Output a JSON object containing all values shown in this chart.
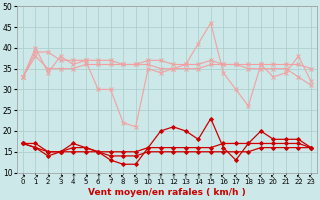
{
  "title": "",
  "xlabel": "Vent moyen/en rafales ( km/h )",
  "x": [
    0,
    1,
    2,
    3,
    4,
    5,
    6,
    7,
    8,
    9,
    10,
    11,
    12,
    13,
    14,
    15,
    16,
    17,
    18,
    19,
    20,
    21,
    22,
    23
  ],
  "series": [
    {
      "name": "rafales_volatile",
      "color": "#f4a0a0",
      "linewidth": 0.8,
      "marker": "x",
      "markersize": 2.5,
      "y": [
        33,
        40,
        34,
        38,
        36,
        37,
        30,
        30,
        22,
        21,
        35,
        34,
        35,
        36,
        41,
        46,
        34,
        30,
        26,
        36,
        33,
        34,
        38,
        32
      ]
    },
    {
      "name": "rafales_upper",
      "color": "#f0a0a0",
      "linewidth": 0.8,
      "marker": "x",
      "markersize": 2.5,
      "y": [
        33,
        39,
        39,
        37,
        37,
        37,
        37,
        37,
        36,
        36,
        37,
        37,
        36,
        36,
        36,
        37,
        36,
        36,
        36,
        36,
        36,
        36,
        36,
        35
      ]
    },
    {
      "name": "rafales_lower",
      "color": "#f0a0a0",
      "linewidth": 0.8,
      "marker": "x",
      "markersize": 2.5,
      "y": [
        33,
        38,
        35,
        35,
        35,
        36,
        36,
        36,
        36,
        36,
        36,
        35,
        35,
        35,
        35,
        36,
        36,
        36,
        35,
        35,
        35,
        35,
        33,
        31
      ]
    },
    {
      "name": "mean_volatile",
      "color": "#cc0000",
      "linewidth": 0.9,
      "marker": "D",
      "markersize": 2.0,
      "y": [
        17,
        16,
        14,
        15,
        17,
        16,
        15,
        13,
        12,
        12,
        16,
        20,
        21,
        20,
        18,
        23,
        16,
        13,
        17,
        20,
        18,
        18,
        18,
        16
      ]
    },
    {
      "name": "mean_upper",
      "color": "#cc0000",
      "linewidth": 0.9,
      "marker": "D",
      "markersize": 2.0,
      "y": [
        17,
        16,
        15,
        15,
        16,
        16,
        15,
        15,
        15,
        15,
        16,
        16,
        16,
        16,
        16,
        16,
        17,
        17,
        17,
        17,
        17,
        17,
        17,
        16
      ]
    },
    {
      "name": "mean_lower",
      "color": "#cc0000",
      "linewidth": 0.9,
      "marker": "D",
      "markersize": 2.0,
      "y": [
        17,
        17,
        15,
        15,
        15,
        15,
        15,
        14,
        14,
        14,
        15,
        15,
        15,
        15,
        15,
        15,
        15,
        15,
        15,
        16,
        16,
        16,
        16,
        16
      ]
    }
  ],
  "ylim": [
    10,
    50
  ],
  "yticks": [
    10,
    15,
    20,
    25,
    30,
    35,
    40,
    45,
    50
  ],
  "bg_color": "#cce8e8",
  "grid_color": "#aacccc",
  "tick_fontsize": 5.5,
  "label_fontsize": 6.5,
  "wind_arrows": [
    "↗",
    "↗",
    "↗",
    "↗",
    "↑",
    "↗",
    "↑",
    "↖",
    "↖",
    "↖",
    "↑",
    "↑",
    "↑",
    "↑",
    "↑",
    "↑",
    "↖",
    "↖",
    "↖",
    "↖",
    "↖",
    "↖",
    "↖",
    "↖"
  ]
}
